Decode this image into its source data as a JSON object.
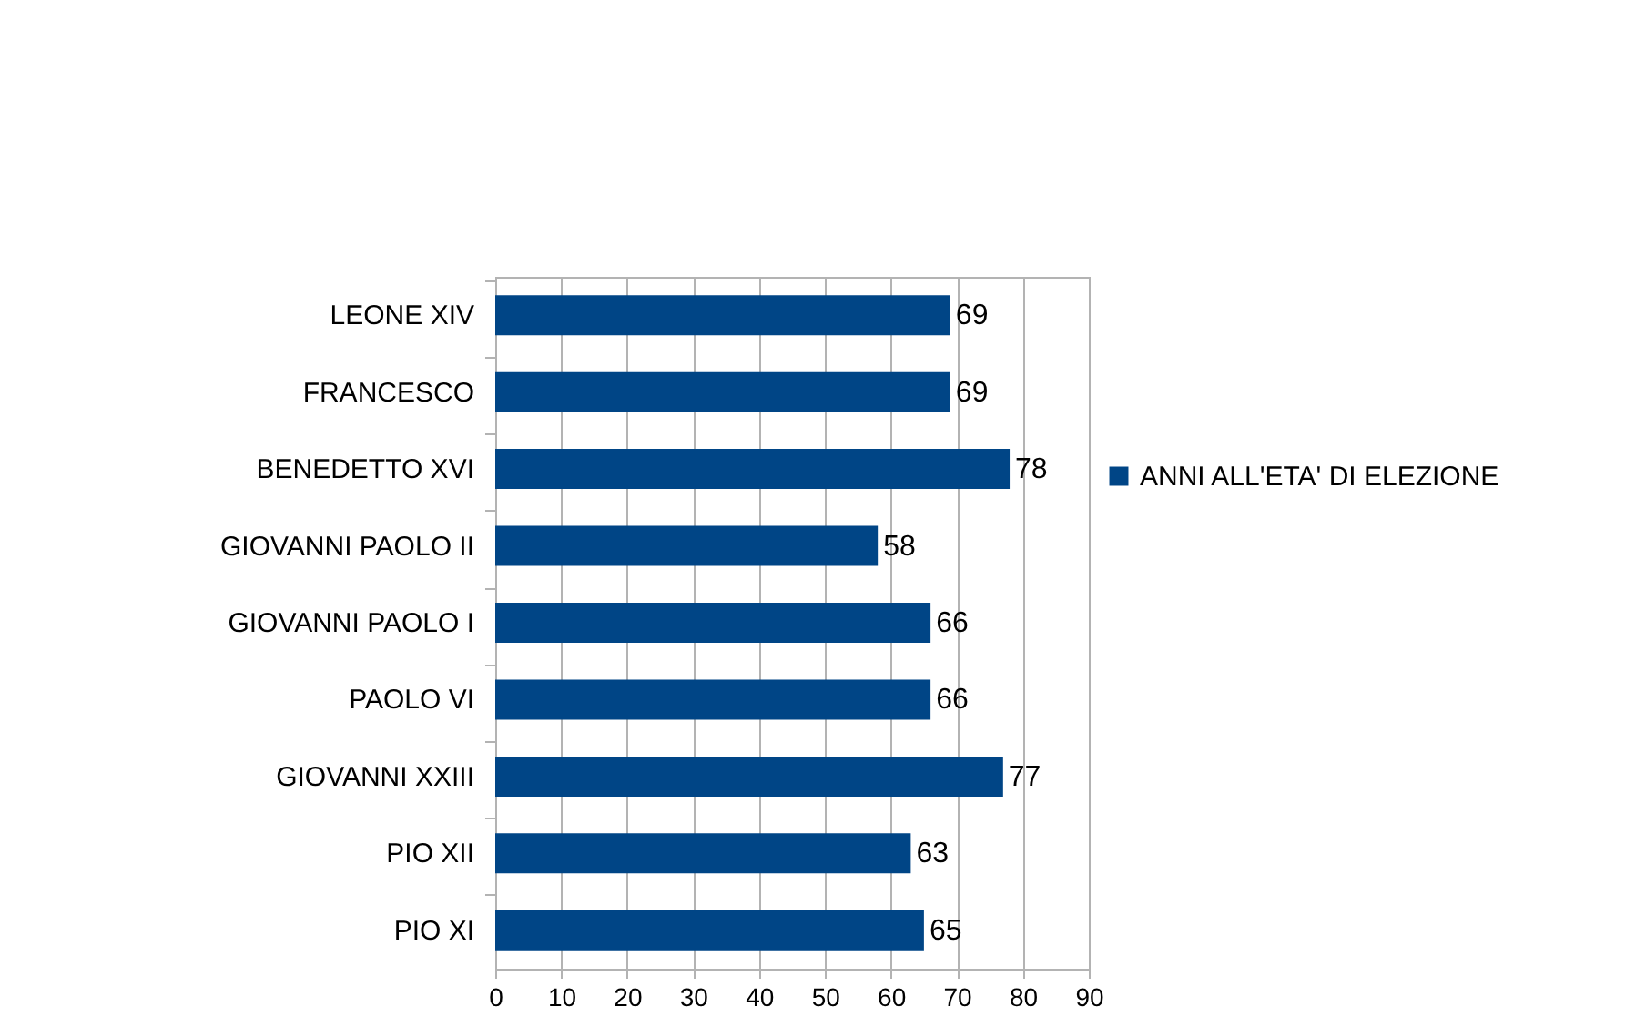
{
  "chart_data": {
    "type": "bar",
    "orientation": "horizontal",
    "categories": [
      "LEONE XIV",
      "FRANCESCO",
      "BENEDETTO XVI",
      "GIOVANNI PAOLO II",
      "GIOVANNI PAOLO I",
      "PAOLO VI",
      "GIOVANNI XXIII",
      "PIO XII",
      "PIO XI"
    ],
    "series": [
      {
        "name": "ANNI ALL'ETA' DI ELEZIONE",
        "color": "#004586",
        "values": [
          69,
          69,
          78,
          58,
          66,
          66,
          77,
          63,
          65
        ]
      }
    ],
    "xlim": [
      0,
      90
    ],
    "xticks": [
      0,
      10,
      20,
      30,
      40,
      50,
      60,
      70,
      80,
      90
    ],
    "grid": "x",
    "legend": "right",
    "data_labels": true
  }
}
